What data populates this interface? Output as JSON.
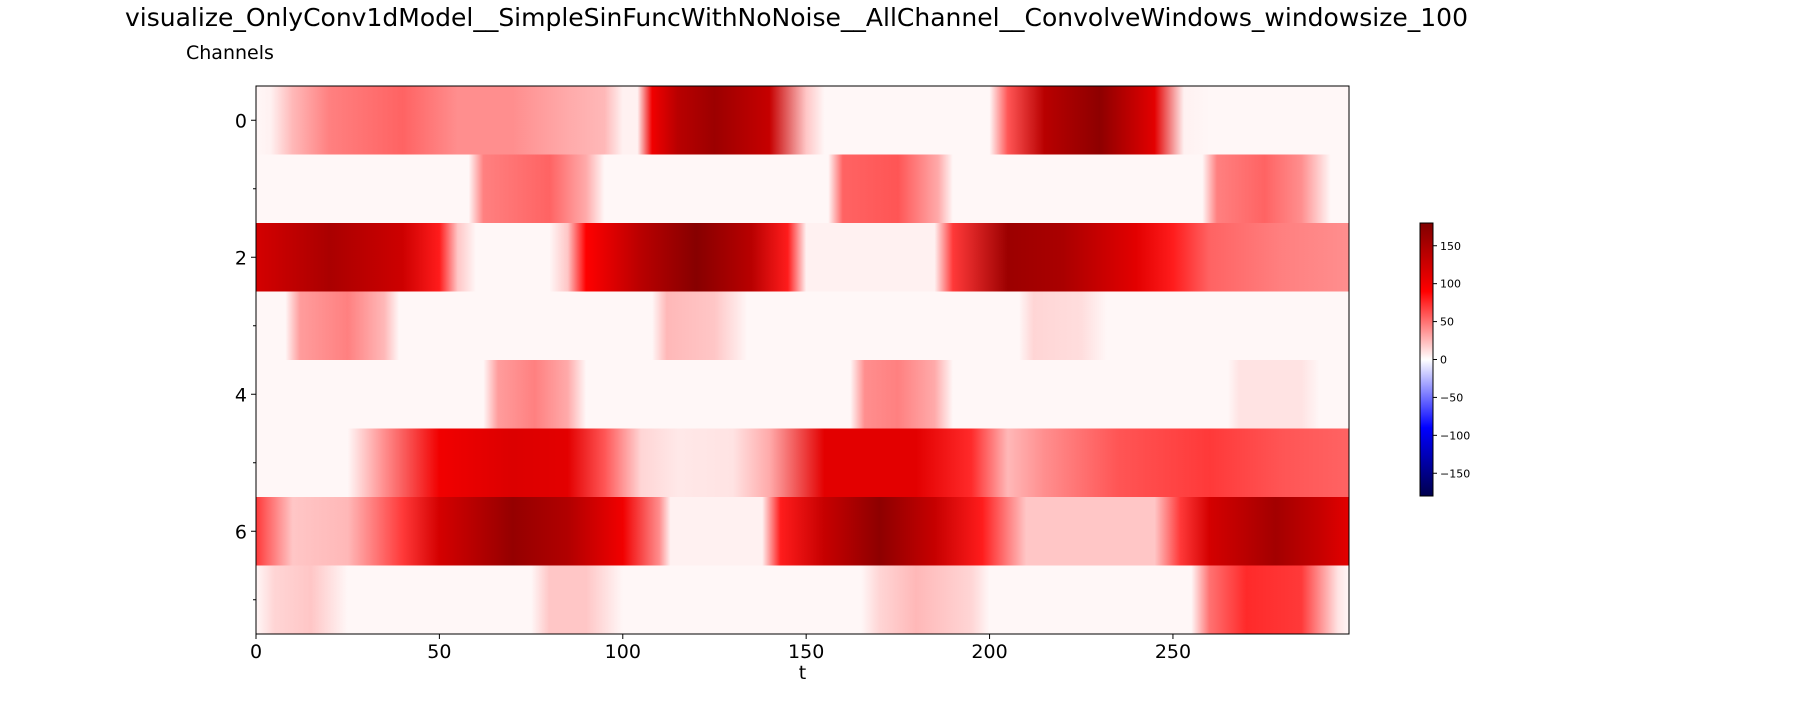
{
  "chart_data": {
    "type": "heatmap",
    "title": "visualize_OnlyConv1dModel__SimpleSinFuncWithNoNoise__AllChannel__ConvolveWindows_windowsize_100",
    "xlabel": "t",
    "ylabel": "Channels",
    "xlim": [
      0,
      298
    ],
    "x_ticks": [
      "0",
      "50",
      "100",
      "150",
      "200",
      "250"
    ],
    "x_tick_values": [
      0,
      50,
      100,
      150,
      200,
      250
    ],
    "y_ticks": [
      "0",
      "2",
      "4",
      "6"
    ],
    "y_tick_values": [
      0,
      2,
      4,
      6
    ],
    "channels": [
      0,
      1,
      2,
      3,
      4,
      5,
      6,
      7
    ],
    "colormap": "seismic",
    "vmin": -180,
    "vmax": 180,
    "colorbar": {
      "ticks": [
        "150",
        "100",
        "50",
        "0",
        "−50",
        "−100",
        "−150"
      ],
      "tick_values": [
        150,
        100,
        50,
        0,
        -50,
        -100,
        -150
      ]
    },
    "rows": [
      {
        "channel": 0,
        "values": [
          [
            0,
            3
          ],
          [
            4,
            5
          ],
          [
            10,
            25
          ],
          [
            20,
            45
          ],
          [
            40,
            55
          ],
          [
            55,
            40
          ],
          [
            70,
            40
          ],
          [
            85,
            30
          ],
          [
            95,
            25
          ],
          [
            100,
            5
          ],
          [
            104,
            5
          ],
          [
            108,
            100
          ],
          [
            115,
            140
          ],
          [
            125,
            160
          ],
          [
            140,
            130
          ],
          [
            150,
            20
          ],
          [
            155,
            3
          ],
          [
            200,
            3
          ],
          [
            205,
            60
          ],
          [
            215,
            140
          ],
          [
            230,
            170
          ],
          [
            245,
            110
          ],
          [
            253,
            5
          ],
          [
            260,
            3
          ],
          [
            298,
            3
          ]
        ]
      },
      {
        "channel": 1,
        "values": [
          [
            0,
            3
          ],
          [
            58,
            3
          ],
          [
            62,
            45
          ],
          [
            80,
            55
          ],
          [
            90,
            30
          ],
          [
            95,
            3
          ],
          [
            156,
            3
          ],
          [
            160,
            55
          ],
          [
            175,
            60
          ],
          [
            186,
            30
          ],
          [
            190,
            3
          ],
          [
            258,
            3
          ],
          [
            262,
            45
          ],
          [
            275,
            55
          ],
          [
            285,
            40
          ],
          [
            293,
            3
          ],
          [
            298,
            3
          ]
        ]
      },
      {
        "channel": 2,
        "values": [
          [
            0,
            120
          ],
          [
            20,
            150
          ],
          [
            40,
            125
          ],
          [
            50,
            80
          ],
          [
            55,
            20
          ],
          [
            60,
            3
          ],
          [
            80,
            3
          ],
          [
            85,
            20
          ],
          [
            90,
            90
          ],
          [
            105,
            140
          ],
          [
            120,
            175
          ],
          [
            135,
            140
          ],
          [
            145,
            80
          ],
          [
            150,
            5
          ],
          [
            185,
            5
          ],
          [
            190,
            70
          ],
          [
            205,
            160
          ],
          [
            220,
            150
          ],
          [
            240,
            110
          ],
          [
            250,
            80
          ],
          [
            260,
            55
          ],
          [
            280,
            45
          ],
          [
            298,
            40
          ]
        ]
      },
      {
        "channel": 3,
        "values": [
          [
            0,
            3
          ],
          [
            8,
            3
          ],
          [
            12,
            35
          ],
          [
            25,
            45
          ],
          [
            35,
            25
          ],
          [
            39,
            3
          ],
          [
            108,
            3
          ],
          [
            112,
            25
          ],
          [
            125,
            20
          ],
          [
            134,
            3
          ],
          [
            208,
            3
          ],
          [
            212,
            15
          ],
          [
            225,
            12
          ],
          [
            232,
            3
          ],
          [
            298,
            3
          ]
        ]
      },
      {
        "channel": 4,
        "values": [
          [
            0,
            3
          ],
          [
            62,
            3
          ],
          [
            66,
            35
          ],
          [
            76,
            45
          ],
          [
            85,
            30
          ],
          [
            90,
            3
          ],
          [
            162,
            3
          ],
          [
            166,
            40
          ],
          [
            175,
            45
          ],
          [
            185,
            30
          ],
          [
            190,
            3
          ],
          [
            265,
            3
          ],
          [
            268,
            10
          ],
          [
            285,
            10
          ],
          [
            290,
            3
          ],
          [
            298,
            3
          ]
        ]
      },
      {
        "channel": 5,
        "values": [
          [
            0,
            3
          ],
          [
            25,
            3
          ],
          [
            35,
            40
          ],
          [
            50,
            100
          ],
          [
            70,
            115
          ],
          [
            85,
            110
          ],
          [
            95,
            60
          ],
          [
            105,
            15
          ],
          [
            115,
            8
          ],
          [
            130,
            10
          ],
          [
            140,
            30
          ],
          [
            155,
            110
          ],
          [
            180,
            110
          ],
          [
            195,
            75
          ],
          [
            205,
            25
          ],
          [
            215,
            40
          ],
          [
            235,
            60
          ],
          [
            260,
            70
          ],
          [
            280,
            60
          ],
          [
            298,
            55
          ]
        ]
      },
      {
        "channel": 6,
        "values": [
          [
            0,
            70
          ],
          [
            5,
            45
          ],
          [
            10,
            20
          ],
          [
            25,
            25
          ],
          [
            40,
            70
          ],
          [
            50,
            120
          ],
          [
            70,
            165
          ],
          [
            85,
            145
          ],
          [
            100,
            100
          ],
          [
            110,
            40
          ],
          [
            113,
            5
          ],
          [
            138,
            5
          ],
          [
            143,
            80
          ],
          [
            155,
            130
          ],
          [
            170,
            170
          ],
          [
            185,
            130
          ],
          [
            198,
            80
          ],
          [
            210,
            20
          ],
          [
            245,
            20
          ],
          [
            252,
            70
          ],
          [
            260,
            120
          ],
          [
            278,
            155
          ],
          [
            290,
            130
          ],
          [
            298,
            110
          ]
        ]
      },
      {
        "channel": 7,
        "values": [
          [
            0,
            3
          ],
          [
            5,
            15
          ],
          [
            15,
            20
          ],
          [
            25,
            3
          ],
          [
            75,
            3
          ],
          [
            80,
            20
          ],
          [
            90,
            20
          ],
          [
            100,
            3
          ],
          [
            165,
            3
          ],
          [
            170,
            15
          ],
          [
            180,
            25
          ],
          [
            195,
            15
          ],
          [
            200,
            3
          ],
          [
            255,
            3
          ],
          [
            260,
            50
          ],
          [
            270,
            75
          ],
          [
            285,
            70
          ],
          [
            295,
            10
          ],
          [
            298,
            3
          ]
        ]
      }
    ]
  }
}
